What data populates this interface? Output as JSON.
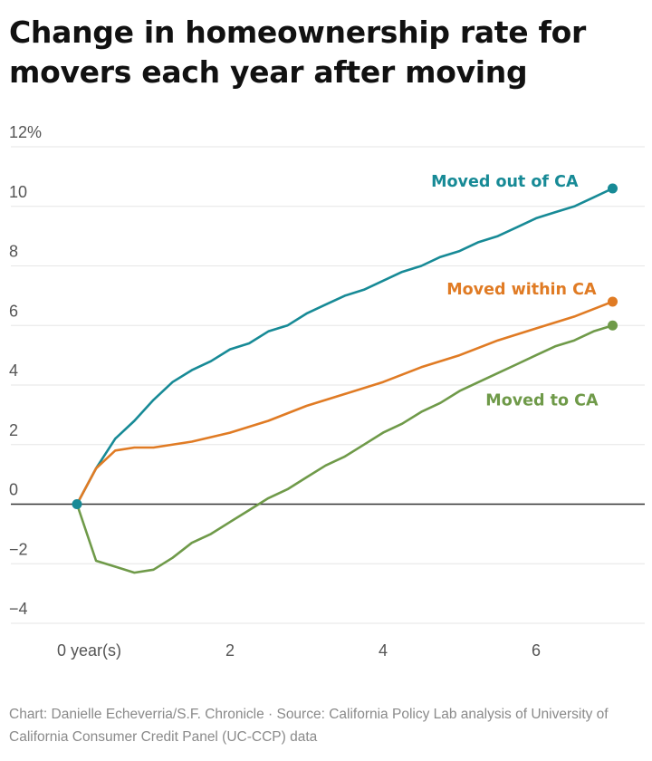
{
  "title": "Change in homeownership rate for movers each year after moving",
  "footer": "Chart: Danielle Echeverria/S.F. Chronicle · Source: California Policy Lab analysis of University of California Consumer Credit Panel (UC-CCP) data",
  "chart_data": {
    "type": "line",
    "title": "Change in homeownership rate for movers each year after moving",
    "xlabel": "",
    "ylabel": "",
    "xlim": [
      -0.1,
      7.2
    ],
    "ylim": [
      -4,
      12
    ],
    "xticks": [
      {
        "value": 0,
        "label": "0 year(s)"
      },
      {
        "value": 2,
        "label": "2"
      },
      {
        "value": 4,
        "label": "4"
      },
      {
        "value": 6,
        "label": "6"
      }
    ],
    "yticks": [
      {
        "value": 12,
        "label": "12%"
      },
      {
        "value": 10,
        "label": "10"
      },
      {
        "value": 8,
        "label": "8"
      },
      {
        "value": 6,
        "label": "6"
      },
      {
        "value": 4,
        "label": "4"
      },
      {
        "value": 2,
        "label": "2"
      },
      {
        "value": 0,
        "label": "0"
      },
      {
        "value": -2,
        "label": "−2"
      },
      {
        "value": -4,
        "label": "−4"
      }
    ],
    "grid": true,
    "legend": "direct labels at line ends",
    "series": [
      {
        "name": "Moved out of CA",
        "color": "#178a96",
        "x": [
          0,
          0.25,
          0.5,
          0.75,
          1,
          1.25,
          1.5,
          1.75,
          2,
          2.25,
          2.5,
          2.75,
          3,
          3.25,
          3.5,
          3.75,
          4,
          4.25,
          4.5,
          4.75,
          5,
          5.25,
          5.5,
          5.75,
          6,
          6.25,
          6.5,
          6.75,
          7
        ],
        "y": [
          0,
          1.2,
          2.2,
          2.8,
          3.5,
          4.1,
          4.5,
          4.8,
          5.2,
          5.4,
          5.8,
          6.0,
          6.4,
          6.7,
          7.0,
          7.2,
          7.5,
          7.8,
          8.0,
          8.3,
          8.5,
          8.8,
          9.0,
          9.3,
          9.6,
          9.8,
          10.0,
          10.3,
          10.6
        ]
      },
      {
        "name": "Moved within CA",
        "color": "#e07b24",
        "x": [
          0,
          0.25,
          0.5,
          0.75,
          1,
          1.5,
          2,
          2.5,
          3,
          3.5,
          4,
          4.5,
          5,
          5.5,
          6,
          6.5,
          7
        ],
        "y": [
          0,
          1.2,
          1.8,
          1.9,
          1.9,
          2.1,
          2.4,
          2.8,
          3.3,
          3.7,
          4.1,
          4.6,
          5.0,
          5.5,
          5.9,
          6.3,
          6.8
        ]
      },
      {
        "name": "Moved to CA",
        "color": "#6f9a49",
        "x": [
          0,
          0.25,
          0.5,
          0.75,
          1,
          1.25,
          1.5,
          1.75,
          2,
          2.25,
          2.5,
          2.75,
          3,
          3.25,
          3.5,
          3.75,
          4,
          4.25,
          4.5,
          4.75,
          5,
          5.25,
          5.5,
          5.75,
          6,
          6.25,
          6.5,
          6.75,
          7
        ],
        "y": [
          0,
          -1.9,
          -2.1,
          -2.3,
          -2.2,
          -1.8,
          -1.3,
          -1.0,
          -0.6,
          -0.2,
          0.2,
          0.5,
          0.9,
          1.3,
          1.6,
          2.0,
          2.4,
          2.7,
          3.1,
          3.4,
          3.8,
          4.1,
          4.4,
          4.7,
          5.0,
          5.3,
          5.5,
          5.8,
          6.0
        ]
      }
    ]
  }
}
